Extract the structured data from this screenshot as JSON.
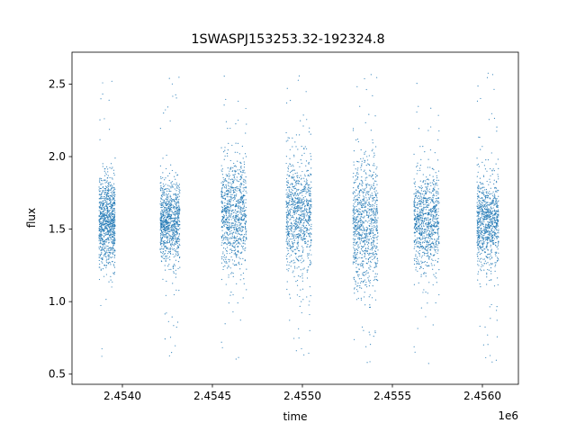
{
  "chart_data": {
    "type": "scatter",
    "title": "1SWASPJ153253.32-192324.8",
    "xlabel": "time",
    "ylabel": "flux",
    "x_offset_label": "1e6",
    "xlim": [
      2.45372,
      2.4562
    ],
    "ylim": [
      0.43,
      2.72
    ],
    "x_ticks": [
      2.454,
      2.4545,
      2.455,
      2.4555,
      2.456
    ],
    "x_tick_labels": [
      "2.4540",
      "2.4545",
      "2.4550",
      "2.4555",
      "2.4560"
    ],
    "y_ticks": [
      0.5,
      1.0,
      1.5,
      2.0,
      2.5
    ],
    "y_tick_labels": [
      "0.5",
      "1.0",
      "1.5",
      "2.0",
      "2.5"
    ],
    "grid": false,
    "marker_color": "#1f77b4",
    "series": [
      {
        "clusters": [
          {
            "x_range": [
              2.45387,
              2.45396
            ],
            "y_center": 1.55,
            "y_spread": 0.35,
            "y_min": 0.55,
            "y_max": 2.57
          },
          {
            "x_range": [
              2.45421,
              2.45432
            ],
            "y_center": 1.55,
            "y_spread": 0.3,
            "y_min": 0.62,
            "y_max": 2.6
          },
          {
            "x_range": [
              2.45455,
              2.45469
            ],
            "y_center": 1.6,
            "y_spread": 0.4,
            "y_min": 0.58,
            "y_max": 2.6
          },
          {
            "x_range": [
              2.45491,
              2.45505
            ],
            "y_center": 1.6,
            "y_spread": 0.45,
            "y_min": 0.6,
            "y_max": 2.58
          },
          {
            "x_range": [
              2.45528,
              2.45542
            ],
            "y_center": 1.55,
            "y_spread": 0.5,
            "y_min": 0.55,
            "y_max": 2.6
          },
          {
            "x_range": [
              2.45562,
              2.45576
            ],
            "y_center": 1.55,
            "y_spread": 0.35,
            "y_min": 0.55,
            "y_max": 2.55
          },
          {
            "x_range": [
              2.45597,
              2.45609
            ],
            "y_center": 1.55,
            "y_spread": 0.35,
            "y_min": 0.55,
            "y_max": 2.6
          }
        ]
      }
    ]
  }
}
